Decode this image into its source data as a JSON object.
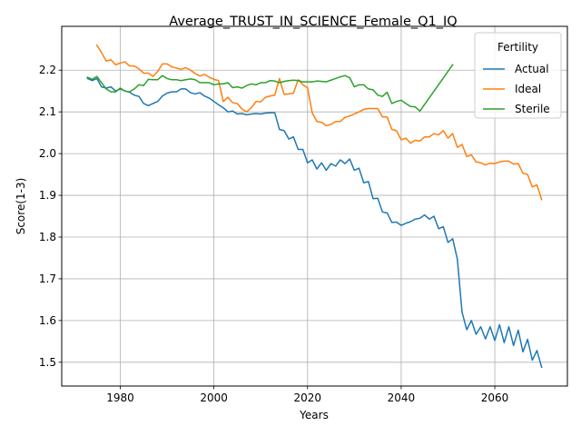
{
  "chart_data": {
    "type": "line",
    "title": "Average_TRUST_IN_SCIENCE_Female_Q1_IQ",
    "xlabel": "Years",
    "ylabel": "Score(1-3)",
    "xlim": [
      1967.5,
      2075.5
    ],
    "ylim": [
      1.443,
      2.305
    ],
    "xticks": [
      1980,
      2000,
      2020,
      2040,
      2060
    ],
    "yticks": [
      1.5,
      1.6,
      1.7,
      1.8,
      1.9,
      2.0,
      2.1,
      2.2
    ],
    "xtick_labels": [
      "1980",
      "2000",
      "2020",
      "2040",
      "2060"
    ],
    "ytick_labels": [
      "1.5",
      "1.6",
      "1.7",
      "1.8",
      "1.9",
      "2.0",
      "2.1",
      "2.2"
    ],
    "grid": true,
    "legend": {
      "title": "Fertility",
      "placement": "upper-right"
    },
    "series": [
      {
        "name": "Actual",
        "color": "#1f77b4",
        "x": [
          1973,
          1974,
          1975,
          1976,
          1977,
          1978,
          1979,
          1980,
          1981,
          1982,
          1983,
          1984,
          1985,
          1986,
          1987,
          1988,
          1989,
          1990,
          1991,
          1992,
          1993,
          1994,
          1995,
          1996,
          1997,
          1998,
          1999,
          2000,
          2001,
          2002,
          2003,
          2004,
          2005,
          2006,
          2007,
          2008,
          2009,
          2010,
          2011,
          2012,
          2013,
          2014,
          2015,
          2016,
          2017,
          2018,
          2019,
          2020,
          2021,
          2022,
          2023,
          2024,
          2025,
          2026,
          2027,
          2028,
          2029,
          2030,
          2031,
          2032,
          2033,
          2034,
          2035,
          2036,
          2037,
          2038,
          2039,
          2040,
          2041,
          2042,
          2043,
          2044,
          2045,
          2046,
          2047,
          2048,
          2049,
          2050,
          2051,
          2052,
          2053,
          2054,
          2055,
          2056,
          2057,
          2058,
          2059,
          2060,
          2061,
          2062,
          2063,
          2064,
          2065,
          2066,
          2067,
          2068,
          2069,
          2070
        ],
        "values": [
          2.18,
          2.175,
          2.18,
          2.16,
          2.157,
          2.16,
          2.15,
          2.155,
          2.15,
          2.147,
          2.14,
          2.137,
          2.12,
          2.115,
          2.12,
          2.125,
          2.138,
          2.145,
          2.148,
          2.148,
          2.155,
          2.155,
          2.146,
          2.143,
          2.146,
          2.138,
          2.133,
          2.125,
          2.117,
          2.11,
          2.1,
          2.102,
          2.095,
          2.096,
          2.093,
          2.095,
          2.096,
          2.095,
          2.097,
          2.098,
          2.098,
          2.058,
          2.055,
          2.035,
          2.04,
          2.01,
          2.01,
          1.978,
          1.985,
          1.963,
          1.978,
          1.96,
          1.976,
          1.97,
          1.985,
          1.976,
          1.987,
          1.96,
          1.965,
          1.93,
          1.933,
          1.892,
          1.893,
          1.86,
          1.858,
          1.835,
          1.836,
          1.828,
          1.833,
          1.837,
          1.843,
          1.845,
          1.853,
          1.843,
          1.85,
          1.82,
          1.825,
          1.787,
          1.796,
          1.747,
          1.62,
          1.578,
          1.6,
          1.567,
          1.585,
          1.556,
          1.585,
          1.552,
          1.59,
          1.547,
          1.585,
          1.54,
          1.577,
          1.525,
          1.555,
          1.505,
          1.528,
          1.488
        ]
      },
      {
        "name": "Ideal",
        "color": "#ff7f0e",
        "x": [
          1975,
          1976,
          1977,
          1978,
          1979,
          1980,
          1981,
          1982,
          1983,
          1984,
          1985,
          1986,
          1987,
          1988,
          1989,
          1990,
          1991,
          1992,
          1993,
          1994,
          1995,
          1996,
          1997,
          1998,
          1999,
          2000,
          2001,
          2002,
          2003,
          2004,
          2005,
          2006,
          2007,
          2008,
          2009,
          2010,
          2011,
          2012,
          2013,
          2014,
          2015,
          2016,
          2017,
          2018,
          2019,
          2020,
          2021,
          2022,
          2023,
          2024,
          2025,
          2026,
          2027,
          2028,
          2029,
          2030,
          2031,
          2032,
          2033,
          2034,
          2035,
          2036,
          2037,
          2038,
          2039,
          2040,
          2041,
          2042,
          2043,
          2044,
          2045,
          2046,
          2047,
          2048,
          2049,
          2050,
          2051,
          2052,
          2053,
          2054,
          2055,
          2056,
          2057,
          2058,
          2059,
          2060,
          2061,
          2062,
          2063,
          2064,
          2065,
          2066,
          2067,
          2068,
          2069,
          2070
        ],
        "values": [
          2.26,
          2.242,
          2.222,
          2.225,
          2.213,
          2.217,
          2.22,
          2.21,
          2.21,
          2.203,
          2.193,
          2.193,
          2.185,
          2.197,
          2.215,
          2.215,
          2.208,
          2.205,
          2.202,
          2.206,
          2.2,
          2.192,
          2.186,
          2.19,
          2.183,
          2.178,
          2.175,
          2.125,
          2.135,
          2.122,
          2.12,
          2.107,
          2.1,
          2.11,
          2.125,
          2.124,
          2.135,
          2.138,
          2.14,
          2.18,
          2.142,
          2.143,
          2.145,
          2.177,
          2.165,
          2.158,
          2.098,
          2.077,
          2.075,
          2.067,
          2.07,
          2.077,
          2.077,
          2.087,
          2.09,
          2.095,
          2.1,
          2.106,
          2.108,
          2.108,
          2.108,
          2.088,
          2.088,
          2.058,
          2.055,
          2.033,
          2.037,
          2.025,
          2.032,
          2.03,
          2.04,
          2.04,
          2.048,
          2.045,
          2.055,
          2.037,
          2.048,
          2.015,
          2.022,
          1.993,
          1.997,
          1.98,
          1.978,
          1.973,
          1.977,
          1.976,
          1.98,
          1.982,
          1.982,
          1.975,
          1.976,
          1.953,
          1.95,
          1.92,
          1.925,
          1.89
        ]
      },
      {
        "name": "Sterile",
        "color": "#2ca02c",
        "x": [
          1973,
          1974,
          1975,
          1976,
          1977,
          1978,
          1979,
          1980,
          1981,
          1982,
          1983,
          1984,
          1985,
          1986,
          1987,
          1988,
          1989,
          1990,
          1991,
          1992,
          1993,
          1994,
          1995,
          1996,
          1997,
          1998,
          1999,
          2000,
          2001,
          2002,
          2003,
          2004,
          2005,
          2006,
          2007,
          2008,
          2009,
          2010,
          2011,
          2012,
          2013,
          2014,
          2015,
          2016,
          2017,
          2018,
          2019,
          2020,
          2021,
          2022,
          2023,
          2024,
          2025,
          2026,
          2027,
          2028,
          2029,
          2030,
          2031,
          2032,
          2033,
          2034,
          2035,
          2036,
          2037,
          2038,
          2039,
          2040,
          2041,
          2042,
          2043,
          2044,
          2051
        ],
        "values": [
          2.183,
          2.178,
          2.185,
          2.17,
          2.155,
          2.148,
          2.148,
          2.157,
          2.15,
          2.148,
          2.155,
          2.165,
          2.163,
          2.178,
          2.177,
          2.177,
          2.187,
          2.18,
          2.177,
          2.177,
          2.175,
          2.177,
          2.179,
          2.177,
          2.17,
          2.17,
          2.17,
          2.165,
          2.167,
          2.167,
          2.17,
          2.158,
          2.16,
          2.157,
          2.163,
          2.167,
          2.165,
          2.17,
          2.17,
          2.175,
          2.174,
          2.17,
          2.173,
          2.175,
          2.176,
          2.175,
          2.172,
          2.172,
          2.172,
          2.174,
          2.173,
          2.172,
          2.176,
          2.18,
          2.184,
          2.187,
          2.182,
          2.16,
          2.165,
          2.165,
          2.155,
          2.153,
          2.14,
          2.137,
          2.147,
          2.12,
          2.125,
          2.128,
          2.12,
          2.113,
          2.112,
          2.102,
          2.213
        ]
      }
    ]
  }
}
